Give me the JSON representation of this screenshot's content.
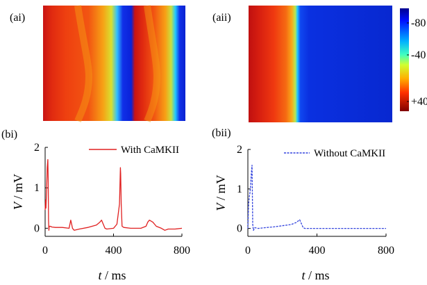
{
  "panels": {
    "ai": "(ai)",
    "aii": "(aii)",
    "bi": "(bi)",
    "bii": "(bii)"
  },
  "colorbar": {
    "ticks": [
      "-80",
      "-40",
      "+40"
    ]
  },
  "colors": {
    "with": "#e02020",
    "without": "#3344dd"
  },
  "chart_data": [
    {
      "type": "heatmap",
      "panel": "(ai)",
      "colormap": "jet (reversed: blue=-80, red=+40)"
    },
    {
      "type": "heatmap",
      "panel": "(aii)",
      "colormap": "jet (reversed: blue=-80, red=+40)"
    },
    {
      "type": "line",
      "panel": "(bi)",
      "ylabel_var": "V",
      "ylabel_unit": " / mV",
      "xlabel_var": "t",
      "xlabel_unit": " / ms",
      "xlim": [
        0,
        800
      ],
      "ylim": [
        -0.2,
        2
      ],
      "xticks": [
        0,
        400,
        800
      ],
      "yticks": [
        0,
        1,
        2
      ],
      "series": [
        {
          "name": "With CaMKII",
          "x": [
            0,
            3,
            5,
            8,
            12,
            16,
            18,
            20,
            22,
            24,
            30,
            40,
            60,
            100,
            140,
            150,
            155,
            160,
            170,
            200,
            250,
            300,
            320,
            330,
            340,
            350,
            360,
            400,
            420,
            435,
            440,
            442,
            445,
            450,
            460,
            500,
            560,
            590,
            600,
            610,
            630,
            650,
            680,
            700,
            720,
            760,
            800
          ],
          "y": [
            0.45,
            0.7,
            0.5,
            0.9,
            1.5,
            1.7,
            1.2,
            0.2,
            -0.05,
            0.05,
            0.05,
            0.03,
            0.02,
            0.02,
            0.0,
            0.2,
            0.1,
            0.0,
            -0.05,
            -0.02,
            0.02,
            0.08,
            0.15,
            0.2,
            0.1,
            0.0,
            -0.02,
            0.0,
            0.1,
            0.6,
            1.5,
            1.35,
            0.6,
            0.05,
            0.02,
            0.0,
            0.0,
            0.05,
            0.15,
            0.2,
            0.15,
            0.05,
            0.0,
            -0.05,
            -0.02,
            -0.02,
            0.0
          ]
        }
      ]
    },
    {
      "type": "line",
      "panel": "(bii)",
      "ylabel_var": "V",
      "ylabel_unit": " / mV",
      "xlabel_var": "t",
      "xlabel_unit": " / ms",
      "xlim": [
        0,
        800
      ],
      "ylim": [
        -0.2,
        2
      ],
      "xticks": [
        0,
        400,
        800
      ],
      "yticks": [
        0,
        1,
        2
      ],
      "series": [
        {
          "name": "Without CaMKII",
          "x": [
            0,
            4,
            8,
            12,
            16,
            20,
            24,
            28,
            32,
            40,
            60,
            100,
            150,
            200,
            250,
            280,
            300,
            310,
            320,
            330,
            350,
            400,
            500,
            600,
            700,
            800
          ],
          "y": [
            0.0,
            0.6,
            0.8,
            0.9,
            1.1,
            1.4,
            1.6,
            0.1,
            -0.05,
            0.02,
            0.0,
            0.02,
            0.04,
            0.07,
            0.1,
            0.15,
            0.22,
            0.12,
            0.02,
            0.0,
            0.0,
            0.0,
            0.0,
            0.0,
            0.0,
            0.0
          ]
        }
      ]
    }
  ]
}
